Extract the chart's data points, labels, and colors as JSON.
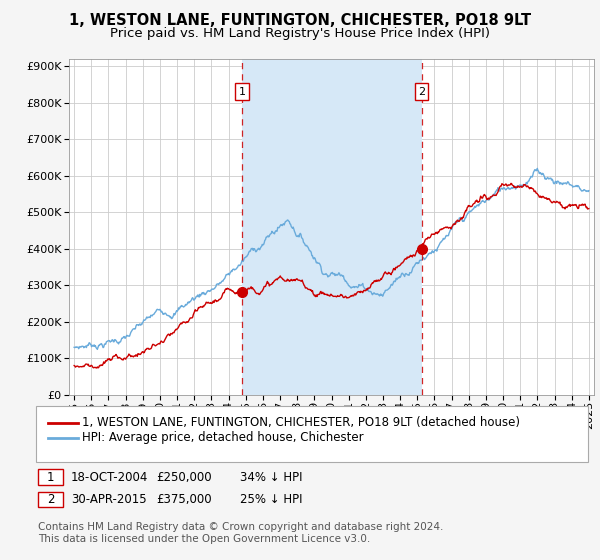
{
  "title": "1, WESTON LANE, FUNTINGTON, CHICHESTER, PO18 9LT",
  "subtitle": "Price paid vs. HM Land Registry's House Price Index (HPI)",
  "ylabel_ticks": [
    "£0",
    "£100K",
    "£200K",
    "£300K",
    "£400K",
    "£500K",
    "£600K",
    "£700K",
    "£800K",
    "£900K"
  ],
  "ytick_values": [
    0,
    100000,
    200000,
    300000,
    400000,
    500000,
    600000,
    700000,
    800000,
    900000
  ],
  "ylim": [
    0,
    920000
  ],
  "xlim_start": 1994.7,
  "xlim_end": 2025.3,
  "sale1_date": 2004.8,
  "sale1_price": 250000,
  "sale2_date": 2015.25,
  "sale2_price": 375000,
  "legend_line1": "1, WESTON LANE, FUNTINGTON, CHICHESTER, PO18 9LT (detached house)",
  "legend_line2": "HPI: Average price, detached house, Chichester",
  "sale1_text1": "18-OCT-2004",
  "sale1_text2": "£250,000",
  "sale1_text3": "34% ↓ HPI",
  "sale2_text1": "30-APR-2015",
  "sale2_text2": "£375,000",
  "sale2_text3": "25% ↓ HPI",
  "footer": "Contains HM Land Registry data © Crown copyright and database right 2024.\nThis data is licensed under the Open Government Licence v3.0.",
  "hpi_color": "#6aabdb",
  "price_color": "#cc0000",
  "vline_color": "#cc0000",
  "shade_color": "#d6e8f7",
  "bg_color": "#ffffff",
  "grid_color": "#cccccc",
  "title_fontsize": 10.5,
  "subtitle_fontsize": 9.5,
  "tick_fontsize": 8,
  "legend_fontsize": 8.5,
  "footer_fontsize": 7.5
}
